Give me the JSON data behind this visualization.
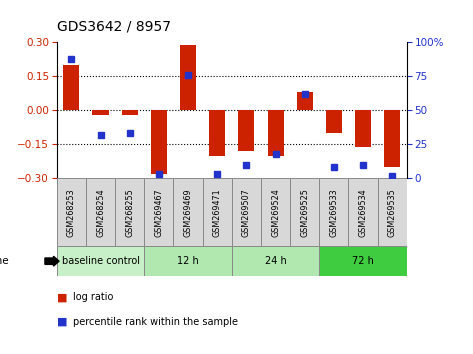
{
  "title": "GDS3642 / 8957",
  "samples": [
    "GSM268253",
    "GSM268254",
    "GSM268255",
    "GSM269467",
    "GSM269469",
    "GSM269471",
    "GSM269507",
    "GSM269524",
    "GSM269525",
    "GSM269533",
    "GSM269534",
    "GSM269535"
  ],
  "log_ratio": [
    0.2,
    -0.02,
    -0.02,
    -0.28,
    0.29,
    -0.2,
    -0.18,
    -0.2,
    0.08,
    -0.1,
    -0.16,
    -0.25
  ],
  "percentile_rank": [
    88,
    32,
    33,
    3,
    76,
    3,
    10,
    18,
    62,
    8,
    10,
    2
  ],
  "groups": [
    {
      "label": "baseline control",
      "start": 0,
      "end": 3,
      "color": "#c8f0c8"
    },
    {
      "label": "12 h",
      "start": 3,
      "end": 6,
      "color": "#b0e8b0"
    },
    {
      "label": "24 h",
      "start": 6,
      "end": 9,
      "color": "#b0e8b0"
    },
    {
      "label": "72 h",
      "start": 9,
      "end": 12,
      "color": "#40cc40"
    }
  ],
  "ylim_left": [
    -0.3,
    0.3
  ],
  "ylim_right": [
    0,
    100
  ],
  "yticks_left": [
    -0.3,
    -0.15,
    0,
    0.15,
    0.3
  ],
  "yticks_right": [
    0,
    25,
    50,
    75,
    100
  ],
  "bar_color": "#cc2200",
  "dot_color": "#2233cc",
  "bg_color": "#ffffff",
  "dotted_lines": [
    -0.15,
    0.0,
    0.15
  ],
  "label_bg_color": "#d8d8d8",
  "label_border_color": "#888888"
}
